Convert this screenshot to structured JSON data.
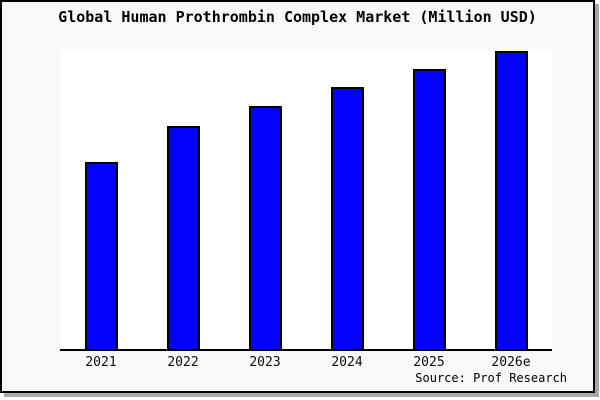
{
  "window": {
    "outer_background": "#ffffff",
    "panel_background": "#f8f8f8",
    "frame_border_color": "#000000",
    "shadow_color": "#a8a8a8"
  },
  "chart_data": {
    "type": "bar",
    "title": "Global Human Prothrombin Complex Market (Million USD)",
    "categories": [
      "2021",
      "2022",
      "2023",
      "2024",
      "2025",
      "2026e"
    ],
    "values_pct": [
      62.3,
      74.3,
      81.0,
      87.3,
      93.3,
      99.3
    ],
    "values_note": "relative bar heights as % of plot height; no y-axis tick values are shown in the figure",
    "xlabel": "",
    "ylabel": "",
    "y_axis_labels_visible": false,
    "grid": false,
    "legend": false,
    "plot_background": "#ffffff",
    "bar_color": "#0202fc",
    "bar_border_color": "#000000",
    "axis_line_color": "#000000",
    "source_note": "Source: Prof Research"
  }
}
